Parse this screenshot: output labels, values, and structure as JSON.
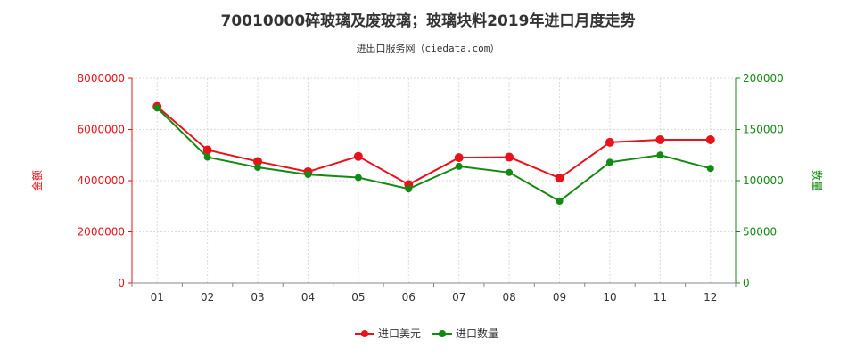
{
  "chart_data": {
    "type": "line",
    "title": "70010000碎玻璃及废玻璃；玻璃块料2019年进口月度走势",
    "subtitle": "进出口服务网（ciedata.com）",
    "categories": [
      "01",
      "02",
      "03",
      "04",
      "05",
      "06",
      "07",
      "08",
      "09",
      "10",
      "11",
      "12"
    ],
    "y_left": {
      "label": "金额",
      "ylim": [
        0,
        8000000
      ],
      "ticks": [
        "0",
        "2000000",
        "4000000",
        "6000000",
        "8000000"
      ],
      "color": "#e8131a"
    },
    "y_right": {
      "label": "数量",
      "ylim": [
        0,
        200000
      ],
      "ticks": [
        "0",
        "50000",
        "100000",
        "150000",
        "200000"
      ],
      "color": "#138a13"
    },
    "series": [
      {
        "name": "进口美元",
        "axis": "left",
        "color": "#e8131a",
        "values": [
          6900000,
          5200000,
          4750000,
          4350000,
          4950000,
          3850000,
          4900000,
          4920000,
          4100000,
          5500000,
          5600000,
          5600000
        ]
      },
      {
        "name": "进口数量",
        "axis": "right",
        "color": "#138a13",
        "values": [
          171000,
          123000,
          113000,
          106000,
          103000,
          92000,
          114000,
          108000,
          80000,
          118000,
          125000,
          112000
        ]
      }
    ],
    "grid": true,
    "legend_position": "bottom-center"
  }
}
